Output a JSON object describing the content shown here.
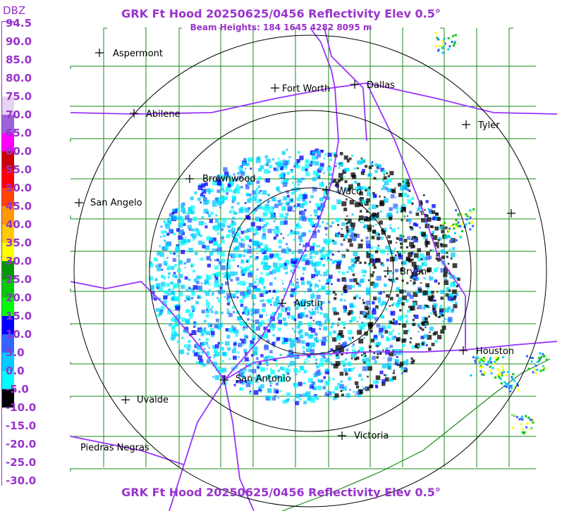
{
  "header": {
    "title": "GRK Ft Hood 20250625/0456 Reflectivity Elev 0.5°",
    "subtitle": "Beam Heights: 184 1645 4282 8095 m"
  },
  "footer": {
    "title": "GRK Ft Hood 20250625/0456 Reflectivity Elev 0.5°"
  },
  "legend": {
    "unit": "DBZ",
    "levels": [
      {
        "label": "94.5",
        "color": "#ffffff"
      },
      {
        "label": "90.0",
        "color": "#ffffff"
      },
      {
        "label": "85.0",
        "color": "#ffffff"
      },
      {
        "label": "80.0",
        "color": "#ffffff"
      },
      {
        "label": "75.0",
        "color": "#e4d4f2"
      },
      {
        "label": "70.0",
        "color": "#9b63d6"
      },
      {
        "label": "65.0",
        "color": "#ff00ff"
      },
      {
        "label": "60.0",
        "color": "#cc0000"
      },
      {
        "label": "55.0",
        "color": "#ff0000"
      },
      {
        "label": "50.0",
        "color": "#ff4400"
      },
      {
        "label": "45.0",
        "color": "#ff9900"
      },
      {
        "label": "40.0",
        "color": "#ffcc00"
      },
      {
        "label": "35.0",
        "color": "#ffff00"
      },
      {
        "label": "30.0",
        "color": "#009900"
      },
      {
        "label": "25.0",
        "color": "#00cc00"
      },
      {
        "label": "20.0",
        "color": "#00ff00"
      },
      {
        "label": "15.0",
        "color": "#0000ff"
      },
      {
        "label": "10.0",
        "color": "#3366ff"
      },
      {
        "label": "5.0",
        "color": "#00ccff"
      },
      {
        "label": "0.0",
        "color": "#00ffff"
      },
      {
        "label": "-5.0",
        "color": "#000000"
      },
      {
        "label": "-10.0",
        "color": "#ffffff"
      },
      {
        "label": "-15.0",
        "color": "#ffffff"
      },
      {
        "label": "-20.0",
        "color": "#ffffff"
      },
      {
        "label": "-25.0",
        "color": "#ffffff"
      },
      {
        "label": "-30.0",
        "color": "#ffffff"
      }
    ]
  },
  "cities": [
    {
      "name": "Aspermont"
    },
    {
      "name": "Fort Worth"
    },
    {
      "name": "Dallas"
    },
    {
      "name": "Abilene"
    },
    {
      "name": "Tyler"
    },
    {
      "name": "Brownwood"
    },
    {
      "name": "Waco"
    },
    {
      "name": "San Angelo"
    },
    {
      "name": "Bryan"
    },
    {
      "name": "Austin"
    },
    {
      "name": "Houston"
    },
    {
      "name": "San Antonio"
    },
    {
      "name": "Uvalde"
    },
    {
      "name": "Victoria"
    },
    {
      "name": "Piedras Negras"
    }
  ],
  "colors": {
    "title": "#9933cc",
    "county_lines": "#1a8a1a",
    "highways": "#9933ff",
    "range_rings": "#000000"
  }
}
